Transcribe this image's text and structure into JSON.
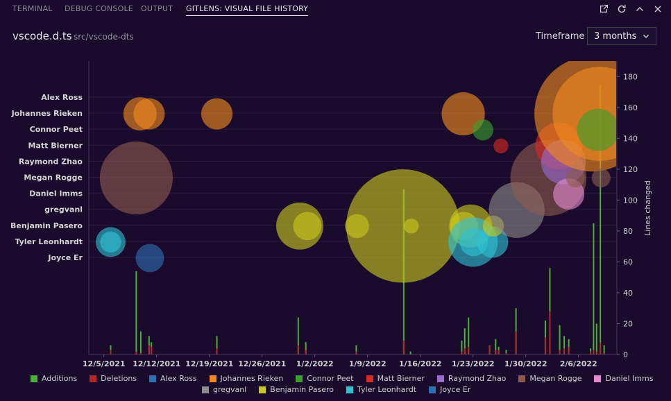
{
  "panel": {
    "tabs": [
      {
        "label": "TERMINAL"
      },
      {
        "label": "DEBUG CONSOLE"
      },
      {
        "label": "OUTPUT"
      },
      {
        "label": "GITLENS: VISUAL FILE HISTORY"
      }
    ]
  },
  "header": {
    "file": "vscode.d.ts",
    "path": "src/vscode-dts",
    "timeframe_label": "Timeframe",
    "timeframe_value": "3 months"
  },
  "colors": {
    "background": "#1a0a2b",
    "additions": "#4caf3a",
    "deletions": "#b3262a"
  },
  "chart_data": {
    "type": "scatter",
    "title": "Visual File History",
    "ylabel": "Lines changed",
    "ylim": [
      0,
      190
    ],
    "y_ticks": [
      0,
      20,
      40,
      60,
      80,
      100,
      120,
      140,
      160,
      180
    ],
    "x_tick_labels": [
      "12/5/2021",
      "12/12/2021",
      "12/19/2021",
      "12/26/2021",
      "1/2/2022",
      "1/9/2022",
      "1/16/2022",
      "1/23/2022",
      "1/30/2022",
      "2/6/2022"
    ],
    "x_range_days": [
      -2,
      68
    ],
    "authors": [
      {
        "name": "Alex Ross",
        "color": "#2f6fb3"
      },
      {
        "name": "Johannes Rieken",
        "color": "#f28a1e"
      },
      {
        "name": "Connor Peet",
        "color": "#3aa02c"
      },
      {
        "name": "Matt Bierner",
        "color": "#d62a22"
      },
      {
        "name": "Raymond Zhao",
        "color": "#9a6bd0"
      },
      {
        "name": "Megan Rogge",
        "color": "#8c5a4e"
      },
      {
        "name": "Daniel Imms",
        "color": "#e58ad0"
      },
      {
        "name": "gregvanl",
        "color": "#8a8a8a"
      },
      {
        "name": "Benjamin Pasero",
        "color": "#c9c81f"
      },
      {
        "name": "Tyler Leonhardt",
        "color": "#2fc1d4"
      },
      {
        "name": "Joyce Er",
        "color": "#2f6fb3"
      }
    ],
    "commits": [
      {
        "author": "Tyler Leonhardt",
        "day": 0.9,
        "size": 10
      },
      {
        "author": "Tyler Leonhardt",
        "day": 0.9,
        "size": 20
      },
      {
        "author": "Megan Rogge",
        "day": 4.3,
        "size": 120
      },
      {
        "author": "Johannes Rieken",
        "day": 4.8,
        "size": 25
      },
      {
        "author": "Johannes Rieken",
        "day": 6.0,
        "size": 22
      },
      {
        "author": "Joyce Er",
        "day": 6.1,
        "size": 18
      },
      {
        "author": "Johannes Rieken",
        "day": 15.0,
        "size": 22
      },
      {
        "author": "Benjamin Pasero",
        "day": 26.0,
        "size": 50
      },
      {
        "author": "Benjamin Pasero",
        "day": 27.0,
        "size": 18
      },
      {
        "author": "Benjamin Pasero",
        "day": 33.6,
        "size": 13
      },
      {
        "author": "Benjamin Pasero",
        "day": 39.7,
        "size": 290
      },
      {
        "author": "Benjamin Pasero",
        "day": 40.8,
        "size": 5
      },
      {
        "author": "Johannes Rieken",
        "day": 47.7,
        "size": 42
      },
      {
        "author": "Benjamin Pasero",
        "day": 47.8,
        "size": 18
      },
      {
        "author": "Benjamin Pasero",
        "day": 48.7,
        "size": 42
      },
      {
        "author": "Tyler Leonhardt",
        "day": 49.0,
        "size": 55
      },
      {
        "author": "Tyler Leonhardt",
        "day": 49.1,
        "size": 18
      },
      {
        "author": "Connor Peet",
        "day": 50.3,
        "size": 10
      },
      {
        "author": "Tyler Leonhardt",
        "day": 51.6,
        "size": 22
      },
      {
        "author": "Benjamin Pasero",
        "day": 51.7,
        "size": 10
      },
      {
        "author": "Matt Bierner",
        "day": 52.7,
        "size": 5
      },
      {
        "author": "gregvanl",
        "day": 54.8,
        "size": 70
      },
      {
        "author": "Megan Rogge",
        "day": 59.0,
        "size": 130
      },
      {
        "author": "Matt Bierner",
        "day": 60.4,
        "size": 50
      },
      {
        "author": "Raymond Zhao",
        "day": 61.0,
        "size": 45
      },
      {
        "author": "Daniel Imms",
        "day": 61.7,
        "size": 22
      },
      {
        "author": "Megan Rogge",
        "day": 62.6,
        "size": 8
      },
      {
        "author": "Johannes Rieken",
        "day": 64.8,
        "size": 300
      },
      {
        "author": "Johannes Rieken",
        "day": 65.8,
        "size": 200
      },
      {
        "author": "Connor Peet",
        "day": 65.6,
        "size": 40
      },
      {
        "author": "Megan Rogge",
        "day": 66.0,
        "size": 8
      }
    ],
    "lines_changed": [
      {
        "day": 0.9,
        "additions": 6,
        "deletions": 3
      },
      {
        "day": 4.3,
        "additions": 54,
        "deletions": 2
      },
      {
        "day": 4.9,
        "additions": 15,
        "deletions": 1
      },
      {
        "day": 6.0,
        "additions": 12,
        "deletions": 6
      },
      {
        "day": 6.3,
        "additions": 8,
        "deletions": 5
      },
      {
        "day": 15.0,
        "additions": 12,
        "deletions": 4
      },
      {
        "day": 25.8,
        "additions": 24,
        "deletions": 6
      },
      {
        "day": 26.8,
        "additions": 8,
        "deletions": 3
      },
      {
        "day": 33.5,
        "additions": 6,
        "deletions": 2
      },
      {
        "day": 39.8,
        "additions": 107,
        "deletions": 9
      },
      {
        "day": 40.7,
        "additions": 2,
        "deletions": 0
      },
      {
        "day": 47.5,
        "additions": 9,
        "deletions": 2
      },
      {
        "day": 47.9,
        "additions": 17,
        "deletions": 4
      },
      {
        "day": 48.4,
        "additions": 24,
        "deletions": 5
      },
      {
        "day": 51.2,
        "additions": 6,
        "deletions": 6
      },
      {
        "day": 52.0,
        "additions": 10,
        "deletions": 3
      },
      {
        "day": 52.4,
        "additions": 5,
        "deletions": 3
      },
      {
        "day": 53.4,
        "additions": 3,
        "deletions": 1
      },
      {
        "day": 54.7,
        "additions": 30,
        "deletions": 15
      },
      {
        "day": 58.6,
        "additions": 22,
        "deletions": 11
      },
      {
        "day": 59.2,
        "additions": 56,
        "deletions": 28
      },
      {
        "day": 60.5,
        "additions": 19,
        "deletions": 3
      },
      {
        "day": 61.1,
        "additions": 12,
        "deletions": 4
      },
      {
        "day": 61.7,
        "additions": 10,
        "deletions": 5
      },
      {
        "day": 64.6,
        "additions": 4,
        "deletions": 2
      },
      {
        "day": 65.0,
        "additions": 85,
        "deletions": 3
      },
      {
        "day": 65.4,
        "additions": 20,
        "deletions": 2
      },
      {
        "day": 65.9,
        "additions": 175,
        "deletions": 8
      },
      {
        "day": 66.4,
        "additions": 6,
        "deletions": 1
      }
    ],
    "legend": [
      {
        "label": "Additions",
        "color": "#4caf3a"
      },
      {
        "label": "Deletions",
        "color": "#b3262a"
      },
      {
        "label": "Alex Ross",
        "color": "#2f6fb3"
      },
      {
        "label": "Johannes Rieken",
        "color": "#f28a1e"
      },
      {
        "label": "Connor Peet",
        "color": "#3aa02c"
      },
      {
        "label": "Matt Bierner",
        "color": "#d62a22"
      },
      {
        "label": "Raymond Zhao",
        "color": "#9a6bd0"
      },
      {
        "label": "Megan Rogge",
        "color": "#8c5a4e"
      },
      {
        "label": "Daniel Imms",
        "color": "#e58ad0"
      },
      {
        "label": "gregvanl",
        "color": "#8a8a8a"
      },
      {
        "label": "Benjamin Pasero",
        "color": "#c9c81f"
      },
      {
        "label": "Tyler Leonhardt",
        "color": "#2fc1d4"
      },
      {
        "label": "Joyce Er",
        "color": "#2f6fb3"
      }
    ]
  }
}
